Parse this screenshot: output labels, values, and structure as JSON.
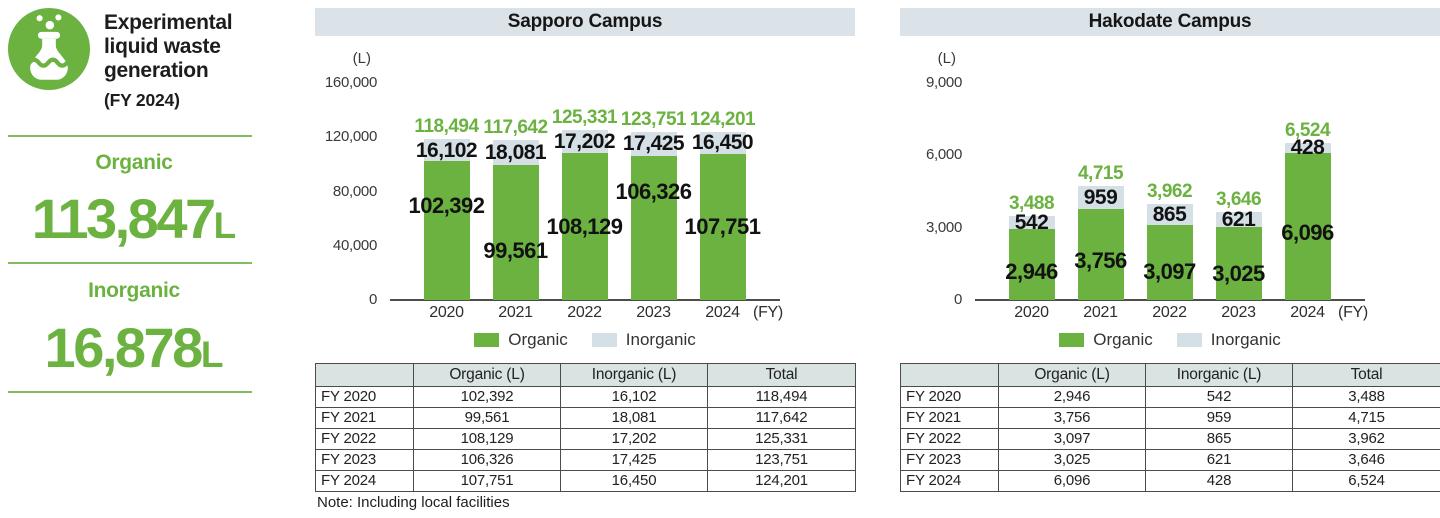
{
  "colors": {
    "green": "#6bb240",
    "inorganic_gray": "#d5dfe6",
    "panel_header_bg": "#dbe3e9",
    "table_header_bg": "#d8e3e2"
  },
  "summary_panel": {
    "icon": "flask-icon",
    "title_lines": [
      "Experimental",
      "liquid waste",
      "generation"
    ],
    "subtitle": "(FY 2024)",
    "items": [
      {
        "label": "Organic",
        "value": "113,847",
        "unit": "L"
      },
      {
        "label": "Inorganic",
        "value": "16,878",
        "unit": "L"
      }
    ]
  },
  "chart_data": [
    {
      "type": "bar",
      "stacked": true,
      "title": "Sapporo Campus",
      "unit_label": "(L)",
      "x_axis_label": "(FY)",
      "categories": [
        "2020",
        "2021",
        "2022",
        "2023",
        "2024"
      ],
      "series": [
        {
          "name": "Organic",
          "color": "#6bb240",
          "values": [
            102392,
            99561,
            108129,
            106326,
            107751
          ],
          "labels": [
            "102,392",
            "99,561",
            "108,129",
            "106,326",
            "107,751"
          ]
        },
        {
          "name": "Inorganic",
          "color": "#d5dfe6",
          "values": [
            16102,
            18081,
            17202,
            17425,
            16450
          ],
          "labels": [
            "16,102",
            "18,081",
            "17,202",
            "17,425",
            "16,450"
          ]
        }
      ],
      "totals": [
        118494,
        117642,
        125331,
        123751,
        124201
      ],
      "total_labels": [
        "118,494",
        "117,642",
        "125,331",
        "123,751",
        "124,201"
      ],
      "ylim": [
        0,
        160000
      ],
      "yticks": [
        "0",
        "40,000",
        "80,000",
        "120,000",
        "160,000"
      ],
      "grid": false,
      "legend_position": "bottom",
      "table": {
        "headers": [
          "",
          "Organic (L)",
          "Inorganic (L)",
          "Total"
        ],
        "rows": [
          [
            "FY 2020",
            "102,392",
            "16,102",
            "118,494"
          ],
          [
            "FY 2021",
            "99,561",
            "18,081",
            "117,642"
          ],
          [
            "FY 2022",
            "108,129",
            "17,202",
            "125,331"
          ],
          [
            "FY 2023",
            "106,326",
            "17,425",
            "123,751"
          ],
          [
            "FY 2024",
            "107,751",
            "16,450",
            "124,201"
          ]
        ]
      },
      "note": "Note: Including local facilities"
    },
    {
      "type": "bar",
      "stacked": true,
      "title": "Hakodate Campus",
      "unit_label": "(L)",
      "x_axis_label": "(FY)",
      "categories": [
        "2020",
        "2021",
        "2022",
        "2023",
        "2024"
      ],
      "series": [
        {
          "name": "Organic",
          "color": "#6bb240",
          "values": [
            2946,
            3756,
            3097,
            3025,
            6096
          ],
          "labels": [
            "2,946",
            "3,756",
            "3,097",
            "3,025",
            "6,096"
          ]
        },
        {
          "name": "Inorganic",
          "color": "#d5dfe6",
          "values": [
            542,
            959,
            865,
            621,
            428
          ],
          "labels": [
            "542",
            "959",
            "865",
            "621",
            "428"
          ]
        }
      ],
      "totals": [
        3488,
        4715,
        3962,
        3646,
        6524
      ],
      "total_labels": [
        "3,488",
        "4,715",
        "3,962",
        "3,646",
        "6,524"
      ],
      "ylim": [
        0,
        9000
      ],
      "yticks": [
        "0",
        "3,000",
        "6,000",
        "9,000"
      ],
      "grid": false,
      "legend_position": "bottom",
      "table": {
        "headers": [
          "",
          "Organic (L)",
          "Inorganic (L)",
          "Total"
        ],
        "rows": [
          [
            "FY 2020",
            "2,946",
            "542",
            "3,488"
          ],
          [
            "FY 2021",
            "3,756",
            "959",
            "4,715"
          ],
          [
            "FY 2022",
            "3,097",
            "865",
            "3,962"
          ],
          [
            "FY 2023",
            "3,025",
            "621",
            "3,646"
          ],
          [
            "FY 2024",
            "6,096",
            "428",
            "6,524"
          ]
        ]
      },
      "note": ""
    }
  ]
}
